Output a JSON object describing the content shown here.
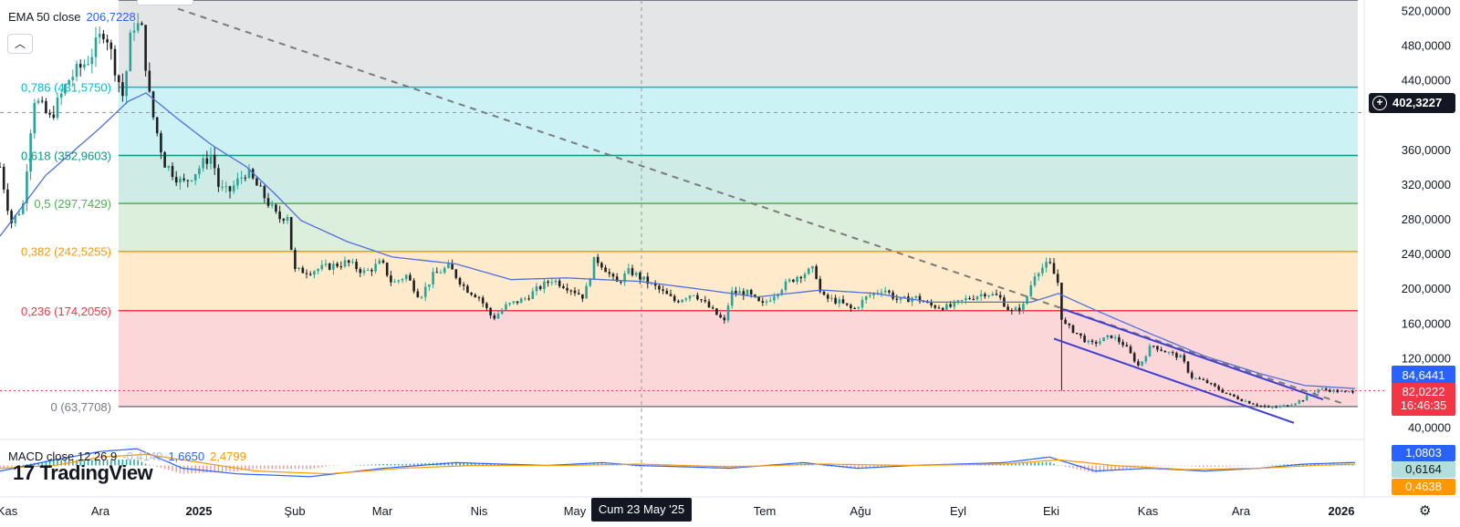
{
  "legend": {
    "ema_label": "EMA 50 close",
    "ema_value": "206,7228",
    "macd_label": "MACD close 12 26 9",
    "macd_hist": "-0,4149",
    "macd_line": "1,6650",
    "macd_signal": "2,4799"
  },
  "branding": {
    "watermark": "TradingView",
    "logo_icon": "tradingview-logo-icon"
  },
  "crosshair": {
    "price_label": "402,3227",
    "date_label": "Cum 23 May '25"
  },
  "price_scale_labels": {
    "ema": "84,6441",
    "last": "82,0222",
    "countdown": "16:46:35",
    "macd_line": "1,0803",
    "macd_hist": "0,6164",
    "macd_signal": "0,4638"
  },
  "colors": {
    "ema": "#4f6fe0",
    "up": "#26a69a",
    "down": "#ef5350",
    "candle": "#1f1f1f",
    "trend_dashed": "#7b7b7b",
    "channel": "#3f3fd0",
    "macd_line": "#2962ff",
    "macd_signal": "#ff9800",
    "last_price": "#f23645",
    "crosshair_bg": "#131722"
  },
  "chart_data": {
    "type": "candlestick",
    "title": "",
    "ylim": [
      28000,
      532000
    ],
    "y_ticks": [
      40000,
      80000,
      120000,
      160000,
      200000,
      240000,
      280000,
      320000,
      360000,
      400000,
      440000,
      480000,
      520000
    ],
    "y_tick_labels": [
      "40,0000",
      "",
      "120,0000",
      "160,0000",
      "200,0000",
      "240,0000",
      "280,0000",
      "320,0000",
      "360,0000",
      "",
      "440,0000",
      "480,0000",
      "520,0000"
    ],
    "x_axis_labels": [
      "Kas",
      "Ara",
      "2025",
      "Şub",
      "Mar",
      "Nis",
      "May",
      "Haz",
      "Tem",
      "Ağu",
      "Eyl",
      "Eki",
      "Kas",
      "Ara",
      "2026"
    ],
    "x_axis_bold": [
      "2025",
      "2026"
    ],
    "fib_levels": [
      {
        "ratio": "0",
        "value": 63770.8,
        "label": "0 (63,7708)",
        "color": "#787b86",
        "fill": null
      },
      {
        "ratio": "0.236",
        "value": 174205.6,
        "label": "0,236 (174,2056)",
        "color": "#f23645",
        "fill": "rgba(242,54,69,0.20)"
      },
      {
        "ratio": "0.382",
        "value": 242525.5,
        "label": "0,382 (242,5255)",
        "color": "#ff9800",
        "fill": "rgba(255,152,0,0.20)"
      },
      {
        "ratio": "0.5",
        "value": 297742.9,
        "label": "0,5 (297,7429)",
        "color": "#4caf50",
        "fill": "rgba(76,175,80,0.20)"
      },
      {
        "ratio": "0.618",
        "value": 352960.3,
        "label": "0,618 (352,9603)",
        "color": "#089981",
        "fill": "rgba(8,153,129,0.20)"
      },
      {
        "ratio": "0.786",
        "value": 431575.0,
        "label": "0,786 (431,5750)",
        "color": "#00bcd4",
        "fill": "rgba(0,188,212,0.20)"
      },
      {
        "ratio": "1",
        "value": 531750,
        "label": "",
        "color": "#787b86",
        "fill": "rgba(120,123,134,0.20)"
      }
    ],
    "candle_anchors": [
      {
        "t": 0,
        "p": 340000
      },
      {
        "t": 12,
        "p": 275000
      },
      {
        "t": 25,
        "p": 295000
      },
      {
        "t": 37,
        "p": 420000
      },
      {
        "t": 55,
        "p": 395000
      },
      {
        "t": 75,
        "p": 440000
      },
      {
        "t": 98,
        "p": 465000
      },
      {
        "t": 115,
        "p": 500000
      },
      {
        "t": 122,
        "p": 470000
      },
      {
        "t": 135,
        "p": 420000
      },
      {
        "t": 145,
        "p": 505000
      },
      {
        "t": 155,
        "p": 500000
      },
      {
        "t": 165,
        "p": 410000
      },
      {
        "t": 180,
        "p": 345000
      },
      {
        "t": 200,
        "p": 320000
      },
      {
        "t": 215,
        "p": 335000
      },
      {
        "t": 232,
        "p": 355000
      },
      {
        "t": 240,
        "p": 315000
      },
      {
        "t": 250,
        "p": 310000
      },
      {
        "t": 270,
        "p": 335000
      },
      {
        "t": 290,
        "p": 305000
      },
      {
        "t": 305,
        "p": 280000
      },
      {
        "t": 315,
        "p": 285000
      },
      {
        "t": 322,
        "p": 220000
      },
      {
        "t": 340,
        "p": 220000
      },
      {
        "t": 360,
        "p": 225000
      },
      {
        "t": 380,
        "p": 230000
      },
      {
        "t": 400,
        "p": 218000
      },
      {
        "t": 418,
        "p": 230000
      },
      {
        "t": 430,
        "p": 205000
      },
      {
        "t": 445,
        "p": 215000
      },
      {
        "t": 460,
        "p": 190000
      },
      {
        "t": 475,
        "p": 215000
      },
      {
        "t": 492,
        "p": 225000
      },
      {
        "t": 510,
        "p": 200000
      },
      {
        "t": 525,
        "p": 190000
      },
      {
        "t": 540,
        "p": 165000
      },
      {
        "t": 555,
        "p": 180000
      },
      {
        "t": 575,
        "p": 188000
      },
      {
        "t": 590,
        "p": 200000
      },
      {
        "t": 605,
        "p": 210000
      },
      {
        "t": 625,
        "p": 200000
      },
      {
        "t": 640,
        "p": 190000
      },
      {
        "t": 652,
        "p": 235000
      },
      {
        "t": 662,
        "p": 225000
      },
      {
        "t": 675,
        "p": 205000
      },
      {
        "t": 690,
        "p": 220000
      },
      {
        "t": 705,
        "p": 210000
      },
      {
        "t": 720,
        "p": 200000
      },
      {
        "t": 740,
        "p": 185000
      },
      {
        "t": 760,
        "p": 195000
      },
      {
        "t": 775,
        "p": 180000
      },
      {
        "t": 795,
        "p": 160000
      },
      {
        "t": 800,
        "p": 195000
      },
      {
        "t": 818,
        "p": 195000
      },
      {
        "t": 835,
        "p": 180000
      },
      {
        "t": 855,
        "p": 200000
      },
      {
        "t": 875,
        "p": 215000
      },
      {
        "t": 893,
        "p": 222000
      },
      {
        "t": 900,
        "p": 190000
      },
      {
        "t": 918,
        "p": 185000
      },
      {
        "t": 935,
        "p": 175000
      },
      {
        "t": 950,
        "p": 190000
      },
      {
        "t": 968,
        "p": 200000
      },
      {
        "t": 985,
        "p": 185000
      },
      {
        "t": 1002,
        "p": 190000
      },
      {
        "t": 1020,
        "p": 180000
      },
      {
        "t": 1040,
        "p": 178000
      },
      {
        "t": 1060,
        "p": 188000
      },
      {
        "t": 1080,
        "p": 195000
      },
      {
        "t": 1095,
        "p": 190000
      },
      {
        "t": 1108,
        "p": 172000
      },
      {
        "t": 1122,
        "p": 180000
      },
      {
        "t": 1135,
        "p": 220000
      },
      {
        "t": 1150,
        "p": 228000
      },
      {
        "t": 1160,
        "p": 205000
      },
      {
        "t": 1164,
        "p": 160000
      },
      {
        "t": 1178,
        "p": 150000
      },
      {
        "t": 1195,
        "p": 135000
      },
      {
        "t": 1218,
        "p": 145000
      },
      {
        "t": 1232,
        "p": 135000
      },
      {
        "t": 1248,
        "p": 110000
      },
      {
        "t": 1262,
        "p": 135000
      },
      {
        "t": 1275,
        "p": 128000
      },
      {
        "t": 1295,
        "p": 120000
      },
      {
        "t": 1305,
        "p": 98000
      },
      {
        "t": 1322,
        "p": 92000
      },
      {
        "t": 1345,
        "p": 78000
      },
      {
        "t": 1365,
        "p": 70000
      },
      {
        "t": 1390,
        "p": 62000
      },
      {
        "t": 1410,
        "p": 65000
      },
      {
        "t": 1428,
        "p": 72000
      },
      {
        "t": 1445,
        "p": 84000
      },
      {
        "t": 1462,
        "p": 82000
      },
      {
        "t": 1475,
        "p": 80000
      },
      {
        "t": 1485,
        "p": 82022
      }
    ],
    "ema_anchors": [
      {
        "t": 0,
        "p": 260000
      },
      {
        "t": 50,
        "p": 330000
      },
      {
        "t": 110,
        "p": 385000
      },
      {
        "t": 140,
        "p": 415000
      },
      {
        "t": 160,
        "p": 425000
      },
      {
        "t": 195,
        "p": 395000
      },
      {
        "t": 232,
        "p": 365000
      },
      {
        "t": 270,
        "p": 340000
      },
      {
        "t": 300,
        "p": 310000
      },
      {
        "t": 330,
        "p": 278000
      },
      {
        "t": 380,
        "p": 254000
      },
      {
        "t": 430,
        "p": 236000
      },
      {
        "t": 500,
        "p": 228000
      },
      {
        "t": 560,
        "p": 210000
      },
      {
        "t": 620,
        "p": 212000
      },
      {
        "t": 700,
        "p": 208000
      },
      {
        "t": 760,
        "p": 200000
      },
      {
        "t": 830,
        "p": 190000
      },
      {
        "t": 900,
        "p": 198000
      },
      {
        "t": 960,
        "p": 194000
      },
      {
        "t": 1020,
        "p": 184000
      },
      {
        "t": 1080,
        "p": 184000
      },
      {
        "t": 1130,
        "p": 184000
      },
      {
        "t": 1160,
        "p": 194000
      },
      {
        "t": 1200,
        "p": 175000
      },
      {
        "t": 1260,
        "p": 148000
      },
      {
        "t": 1320,
        "p": 122000
      },
      {
        "t": 1380,
        "p": 102000
      },
      {
        "t": 1430,
        "p": 88000
      },
      {
        "t": 1485,
        "p": 84644
      }
    ],
    "dashed_trendline": [
      {
        "t": 195,
        "p": 522000
      },
      {
        "t": 1475,
        "p": 66000
      }
    ],
    "channel_upper": [
      {
        "t": 1165,
        "p": 176000
      },
      {
        "t": 1450,
        "p": 72000
      }
    ],
    "channel_lower": [
      {
        "t": 1155,
        "p": 142000
      },
      {
        "t": 1418,
        "p": 45000
      }
    ],
    "crosshair_price": 402322.7,
    "last_price": 82022.2,
    "ema_last": 84644.1,
    "macd": {
      "ylim": [
        -8,
        8
      ],
      "line": [
        [
          0,
          -2
        ],
        [
          60,
          2
        ],
        [
          110,
          5
        ],
        [
          150,
          6
        ],
        [
          200,
          -1
        ],
        [
          260,
          -3
        ],
        [
          340,
          -4
        ],
        [
          420,
          -1
        ],
        [
          500,
          1
        ],
        [
          600,
          0
        ],
        [
          660,
          1
        ],
        [
          700,
          0
        ],
        [
          800,
          -1
        ],
        [
          880,
          1
        ],
        [
          940,
          -1
        ],
        [
          1000,
          0
        ],
        [
          1100,
          1
        ],
        [
          1150,
          3
        ],
        [
          1200,
          -2
        ],
        [
          1260,
          -1
        ],
        [
          1320,
          -2
        ],
        [
          1380,
          -1
        ],
        [
          1430,
          0.5
        ],
        [
          1485,
          1.08
        ]
      ],
      "signal": [
        [
          0,
          -1
        ],
        [
          60,
          0
        ],
        [
          110,
          3
        ],
        [
          160,
          4
        ],
        [
          220,
          1
        ],
        [
          280,
          -2
        ],
        [
          360,
          -3
        ],
        [
          440,
          -1
        ],
        [
          520,
          0
        ],
        [
          620,
          0
        ],
        [
          700,
          0.5
        ],
        [
          800,
          -0.5
        ],
        [
          900,
          0.5
        ],
        [
          1000,
          0
        ],
        [
          1100,
          0.5
        ],
        [
          1160,
          2
        ],
        [
          1220,
          0
        ],
        [
          1300,
          -1.5
        ],
        [
          1380,
          -1
        ],
        [
          1440,
          0
        ],
        [
          1485,
          0.46
        ]
      ]
    }
  }
}
